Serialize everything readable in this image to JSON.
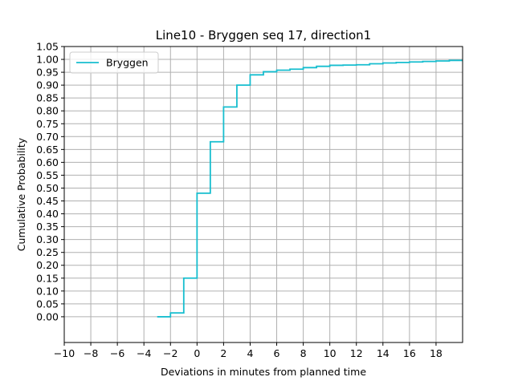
{
  "chart_data": {
    "type": "line",
    "title": "Line10 - Bryggen seq 17, direction1",
    "xlabel": "Deviations in minutes from planned time",
    "ylabel": "Cumulative Probability",
    "xlim": [
      -10,
      20
    ],
    "ylim": [
      -0.1,
      1.05
    ],
    "xticks": [
      -10,
      -8,
      -6,
      -4,
      -2,
      0,
      2,
      4,
      6,
      8,
      10,
      12,
      14,
      16,
      18
    ],
    "xtick_labels": [
      "−10",
      "−8",
      "−6",
      "−4",
      "−2",
      "0",
      "2",
      "4",
      "6",
      "8",
      "10",
      "12",
      "14",
      "16",
      "18"
    ],
    "yticks": [
      0.0,
      0.05,
      0.1,
      0.15,
      0.2,
      0.25,
      0.3,
      0.35,
      0.4,
      0.45,
      0.5,
      0.55,
      0.6,
      0.65,
      0.7,
      0.75,
      0.8,
      0.85,
      0.9,
      0.95,
      1.0,
      1.05
    ],
    "ytick_labels": [
      "0.00",
      "0.05",
      "0.10",
      "0.15",
      "0.20",
      "0.25",
      "0.30",
      "0.35",
      "0.40",
      "0.45",
      "0.50",
      "0.55",
      "0.60",
      "0.65",
      "0.70",
      "0.75",
      "0.80",
      "0.85",
      "0.90",
      "0.95",
      "1.00",
      "1.05"
    ],
    "grid": true,
    "legend_position": "top-left",
    "step": "post",
    "series": [
      {
        "name": "Bryggen",
        "color": "#17becf",
        "x": [
          -3,
          -2,
          -1,
          0,
          1,
          2,
          3,
          4,
          5,
          6,
          7,
          8,
          9,
          10,
          11,
          12,
          13,
          14,
          15,
          16,
          17,
          18,
          19,
          20
        ],
        "y": [
          0.0,
          0.015,
          0.15,
          0.48,
          0.68,
          0.815,
          0.9,
          0.94,
          0.952,
          0.958,
          0.962,
          0.968,
          0.973,
          0.977,
          0.978,
          0.979,
          0.983,
          0.986,
          0.988,
          0.99,
          0.992,
          0.994,
          0.996,
          0.997
        ]
      }
    ]
  }
}
